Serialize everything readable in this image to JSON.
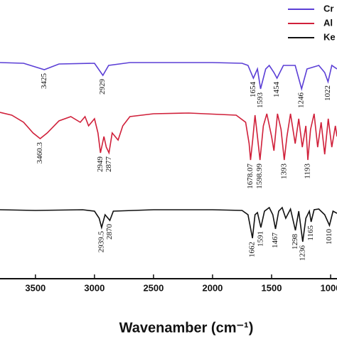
{
  "chart_data": {
    "type": "line",
    "x_label": "Wavenamber (cm⁻¹)",
    "xlim": [
      3800,
      946
    ],
    "xticks": [
      3500,
      3000,
      2500,
      2000,
      1500,
      1000
    ],
    "ylim": [
      0,
      392
    ],
    "legend": "upper right",
    "series": [
      {
        "name": "Cr",
        "color": "#5b3fd6",
        "x": [
          3800,
          3600,
          3425,
          3300,
          3000,
          2929,
          2880,
          2700,
          2000,
          1750,
          1700,
          1654,
          1620,
          1593,
          1550,
          1520,
          1480,
          1454,
          1400,
          1300,
          1246,
          1200,
          1100,
          1050,
          1022,
          990,
          946
        ],
        "values": [
          304,
          303,
          294,
          302,
          303,
          286,
          300,
          304,
          304,
          303,
          300,
          282,
          295,
          267,
          295,
          300,
          290,
          282,
          300,
          300,
          267,
          295,
          300,
          290,
          277,
          300,
          295
        ],
        "annotations": [
          {
            "text": "3425",
            "x": 3425
          },
          {
            "text": "2929",
            "x": 2929
          },
          {
            "text": "1654",
            "x": 1654
          },
          {
            "text": "1593",
            "x": 1593
          },
          {
            "text": "1454",
            "x": 1454
          },
          {
            "text": "1246",
            "x": 1246
          },
          {
            "text": "1022",
            "x": 1022
          }
        ]
      },
      {
        "name": "Al",
        "color": "#d0203a",
        "x": [
          3800,
          3700,
          3600,
          3520,
          3460,
          3400,
          3300,
          3200,
          3120,
          3080,
          3050,
          3000,
          2970,
          2949,
          2920,
          2900,
          2877,
          2850,
          2800,
          2760,
          2700,
          2500,
          2200,
          1800,
          1720,
          1690,
          1678,
          1660,
          1640,
          1620,
          1598,
          1570,
          1540,
          1500,
          1480,
          1450,
          1420,
          1393,
          1370,
          1340,
          1300,
          1270,
          1240,
          1210,
          1193,
          1170,
          1140,
          1110,
          1080,
          1050,
          1020,
          990,
          960,
          946
        ],
        "values": [
          234,
          230,
          220,
          205,
          197,
          205,
          222,
          228,
          220,
          228,
          215,
          225,
          205,
          177,
          200,
          185,
          177,
          205,
          195,
          215,
          228,
          232,
          233,
          230,
          220,
          190,
          167,
          195,
          230,
          200,
          167,
          215,
          232,
          200,
          180,
          232,
          210,
          167,
          200,
          232,
          190,
          225,
          185,
          215,
          167,
          210,
          232,
          185,
          220,
          175,
          225,
          185,
          215,
          200
        ],
        "annotations": [
          {
            "text": "3460.3",
            "x": 3460
          },
          {
            "text": "2949",
            "x": 2949
          },
          {
            "text": "2877",
            "x": 2877
          },
          {
            "text": "1678.07",
            "x": 1678
          },
          {
            "text": "1598.99",
            "x": 1598
          },
          {
            "text": "1393",
            "x": 1393
          },
          {
            "text": "1193",
            "x": 1193
          }
        ]
      },
      {
        "name": "Ke",
        "color": "#111111",
        "x": [
          3800,
          3500,
          3100,
          3000,
          2960,
          2939.5,
          2910,
          2870,
          2840,
          2500,
          2000,
          1750,
          1700,
          1662,
          1640,
          1620,
          1591,
          1560,
          1520,
          1490,
          1467,
          1440,
          1410,
          1380,
          1340,
          1298,
          1270,
          1236,
          1210,
          1180,
          1165,
          1140,
          1100,
          1050,
          1010,
          980,
          946
        ],
        "values": [
          97,
          96,
          97,
          95,
          85,
          72,
          90,
          82,
          95,
          97,
          97,
          96,
          90,
          57,
          90,
          93,
          72,
          95,
          100,
          90,
          70,
          95,
          100,
          85,
          98,
          68,
          95,
          52,
          85,
          95,
          80,
          97,
          98,
          90,
          75,
          95,
          92
        ],
        "annotations": [
          {
            "text": "2939.5",
            "x": 2939.5
          },
          {
            "text": "2870",
            "x": 2870
          },
          {
            "text": "1662",
            "x": 1662
          },
          {
            "text": "1591",
            "x": 1591
          },
          {
            "text": "1467",
            "x": 1467
          },
          {
            "text": "1298",
            "x": 1298
          },
          {
            "text": "1236",
            "x": 1236
          },
          {
            "text": "1165",
            "x": 1165
          },
          {
            "text": "1010",
            "x": 1010
          }
        ]
      }
    ]
  }
}
